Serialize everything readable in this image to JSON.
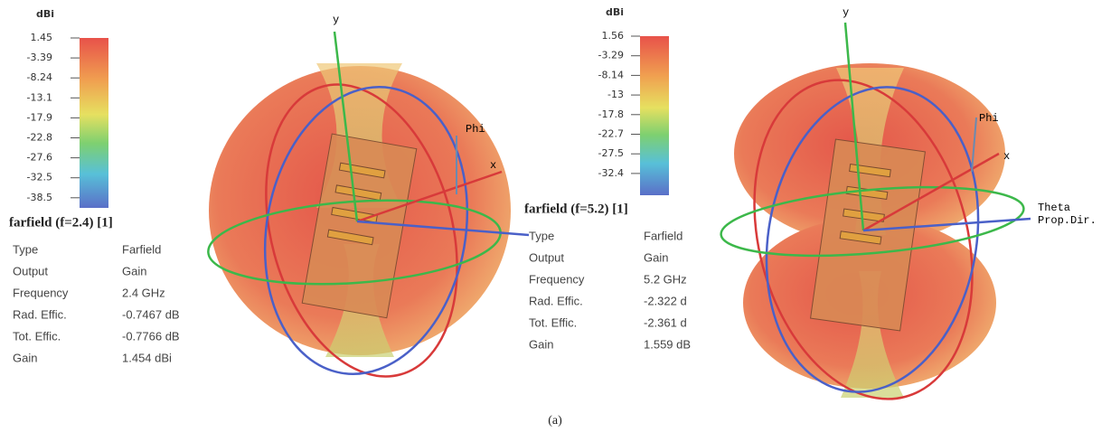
{
  "panels": [
    {
      "colorbar": {
        "unit": "dBi",
        "ticks": [
          "1.45",
          "-3.39",
          "-8.24",
          "-13.1",
          "-17.9",
          "-22.8",
          "-27.6",
          "-32.5",
          "-38.5"
        ]
      },
      "title": "farfield (f=2.4) [1]",
      "properties": [
        [
          "Type",
          "Farfield"
        ],
        [
          "Output",
          "Gain"
        ],
        [
          "Frequency",
          "2.4 GHz"
        ],
        [
          "Rad. Effic.",
          "-0.7467 dB"
        ],
        [
          "Tot. Effic.",
          "-0.7766 dB"
        ],
        [
          "Gain",
          "1.454 dBi"
        ]
      ],
      "axes": {
        "y": "y",
        "phi": "Phi",
        "x": "x"
      }
    },
    {
      "colorbar": {
        "unit": "dBi",
        "ticks": [
          "1.56",
          "-3.29",
          "-8.14",
          "-13",
          "-17.8",
          "-22.7",
          "-27.5",
          "-32.4"
        ]
      },
      "title": "farfield (f=5.2) [1]",
      "properties": [
        [
          "Type",
          "Farfield"
        ],
        [
          "Output",
          "Gain"
        ],
        [
          "Frequency",
          "5.2 GHz"
        ],
        [
          "Rad. Effic.",
          "-2.322 d"
        ],
        [
          "Tot. Effic.",
          "-2.361 d"
        ],
        [
          "Gain",
          "1.559 dB"
        ]
      ],
      "axes": {
        "y": "y",
        "phi": "Phi",
        "x": "x",
        "theta": "Theta",
        "prop": "Prop.Dir."
      }
    }
  ],
  "caption": "(a)"
}
